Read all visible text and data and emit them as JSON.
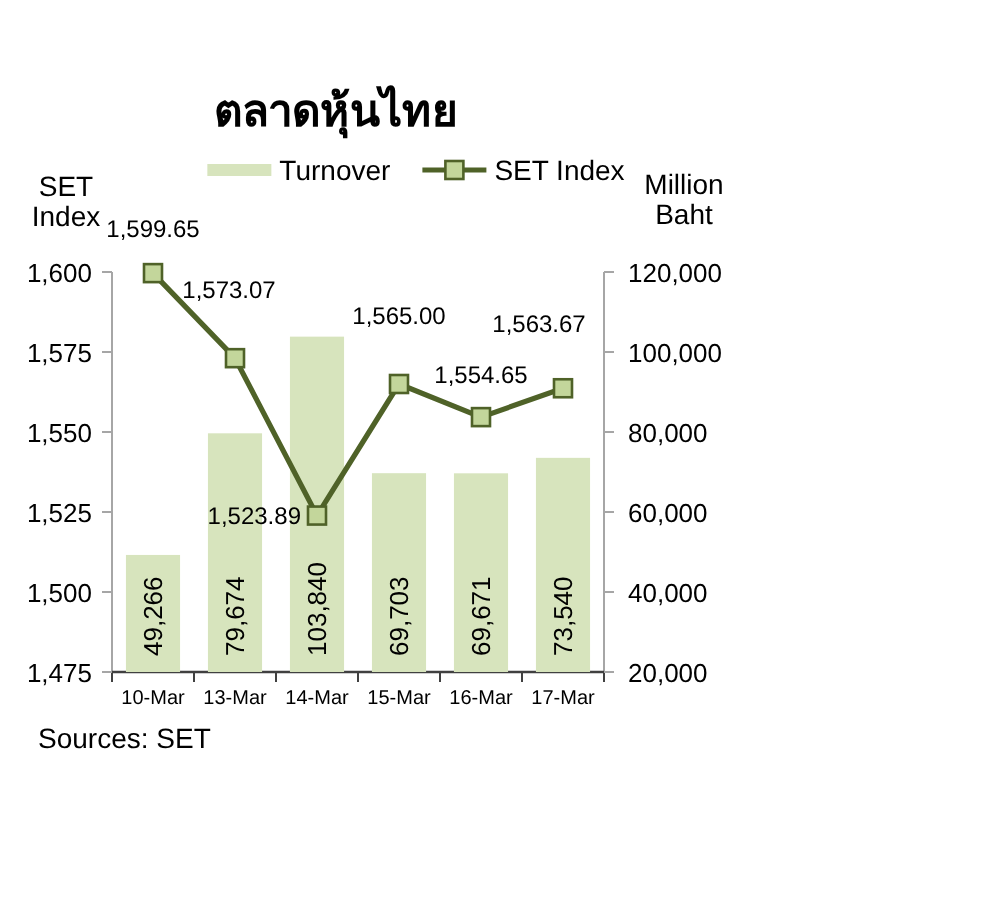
{
  "chart_data": {
    "type": "bar",
    "title": "ตลาดหุ้นไทย",
    "categories": [
      "10-Mar",
      "13-Mar",
      "14-Mar",
      "15-Mar",
      "16-Mar",
      "17-Mar"
    ],
    "series": [
      {
        "name": "Turnover",
        "axis": "y2",
        "color": "#d7e4bd",
        "values": [
          49266,
          79674,
          103840,
          69703,
          69671,
          73540
        ],
        "value_labels": [
          "49,266",
          "79,674",
          "103,840",
          "69,703",
          "69,671",
          "73,540"
        ]
      },
      {
        "name": "SET Index",
        "type": "line",
        "color": "#4f6228",
        "marker": "square",
        "values": [
          1599.65,
          1573.07,
          1523.89,
          1565.0,
          1554.65,
          1563.67
        ],
        "value_labels": [
          "1,599.65",
          "1,573.07",
          "1,523.89",
          "1,565.00",
          "1,554.65",
          "1,563.67"
        ]
      }
    ],
    "ylabel": "SET Index",
    "y2label": "Million Baht",
    "ylim": [
      1475,
      1600
    ],
    "yticks": [
      {
        "value": 1475,
        "label": "1,475"
      },
      {
        "value": 1500,
        "label": "1,500"
      },
      {
        "value": 1525,
        "label": "1,525"
      },
      {
        "value": 1550,
        "label": "1,550"
      },
      {
        "value": 1575,
        "label": "1,575"
      },
      {
        "value": 1600,
        "label": "1,600"
      }
    ],
    "y2lim": [
      20000,
      120000
    ],
    "y2ticks": [
      {
        "value": 20000,
        "label": "20,000"
      },
      {
        "value": 40000,
        "label": "40,000"
      },
      {
        "value": 60000,
        "label": "60,000"
      },
      {
        "value": 80000,
        "label": "80,000"
      },
      {
        "value": 100000,
        "label": "100,000"
      },
      {
        "value": 120000,
        "label": "120,000"
      }
    ],
    "legend": "top",
    "annotations": [
      "Sources: SET"
    ]
  }
}
